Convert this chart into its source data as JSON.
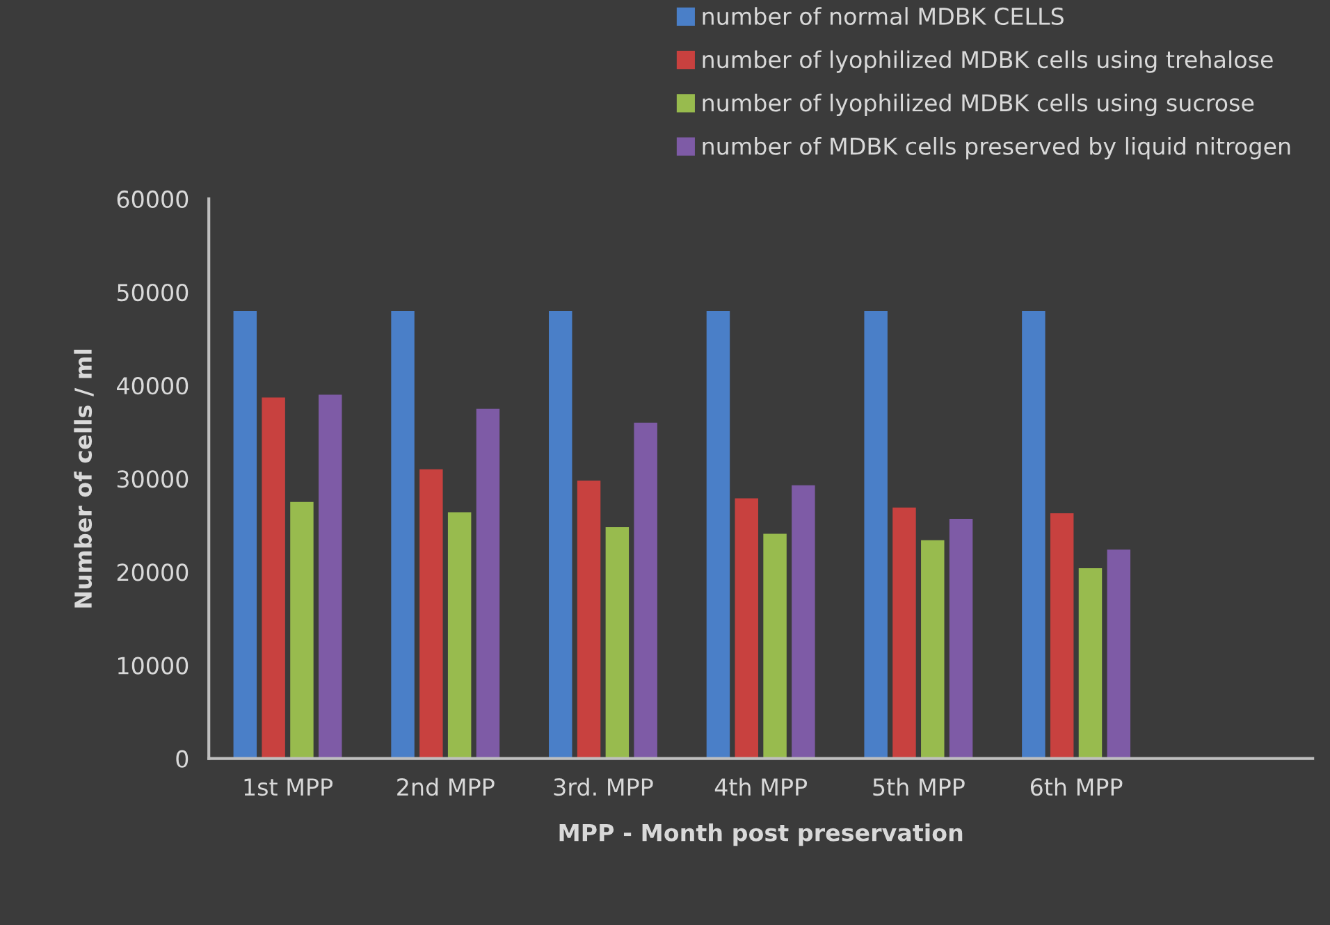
{
  "chart_data": {
    "type": "bar",
    "xlabel": "MPP - Month post preservation",
    "ylabel": "Number of cells / ml",
    "categories": [
      "1st MPP",
      "2nd MPP",
      "3rd. MPP",
      "4th MPP",
      "5th MPP",
      "6th MPP",
      null
    ],
    "series": [
      {
        "name": "number of normal MDBK CELLS",
        "color": "#4a7fc8",
        "values": [
          48000,
          48000,
          48000,
          48000,
          48000,
          48000,
          null
        ]
      },
      {
        "name": "number of lyophilized MDBK cells using trehalose",
        "color": "#c8413f",
        "values": [
          38700,
          31000,
          29800,
          27900,
          26900,
          26300,
          null
        ]
      },
      {
        "name": "number of lyophilized MDBK cells using sucrose",
        "color": "#98bb4e",
        "values": [
          27500,
          26400,
          24800,
          24100,
          23400,
          20400,
          null
        ]
      },
      {
        "name": "number of MDBK cells preserved by liquid nitrogen",
        "color": "#7e5ba6",
        "values": [
          39000,
          37500,
          36000,
          29300,
          25700,
          22400,
          null
        ]
      }
    ],
    "ylim": [
      0,
      60000
    ],
    "yticks": [
      0,
      10000,
      20000,
      30000,
      40000,
      50000,
      60000
    ],
    "grid": false,
    "legend": "top right"
  }
}
